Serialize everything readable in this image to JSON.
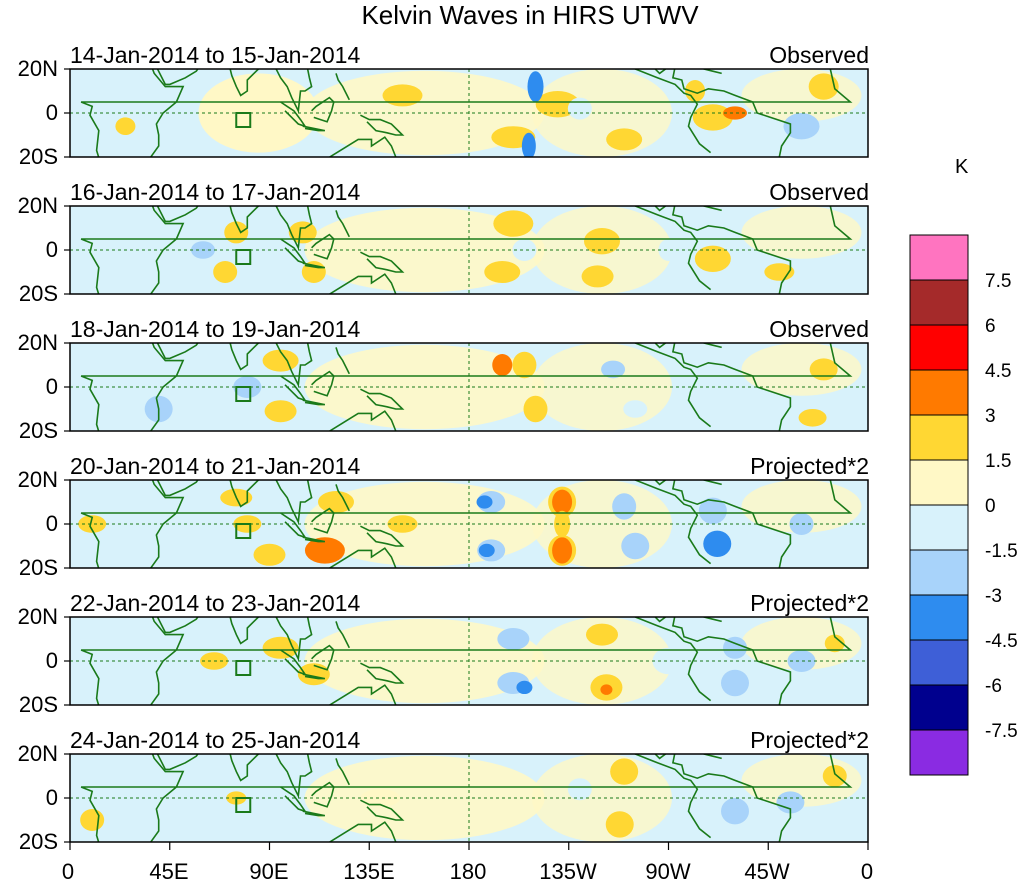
{
  "title": "Kelvin Waves in HIRS UTWV",
  "panels": [
    {
      "date_range": "14-Jan-2014 to 15-Jan-2014",
      "type": "Observed"
    },
    {
      "date_range": "16-Jan-2014 to 17-Jan-2014",
      "type": "Observed"
    },
    {
      "date_range": "18-Jan-2014 to 19-Jan-2014",
      "type": "Observed"
    },
    {
      "date_range": "20-Jan-2014 to 21-Jan-2014",
      "type": "Projected*2"
    },
    {
      "date_range": "22-Jan-2014 to 23-Jan-2014",
      "type": "Projected*2"
    },
    {
      "date_range": "24-Jan-2014 to 25-Jan-2014",
      "type": "Projected*2"
    }
  ],
  "lat_labels": [
    "20N",
    "0",
    "20S"
  ],
  "lon_labels": [
    "0",
    "45E",
    "90E",
    "135E",
    "180",
    "135W",
    "90W",
    "45W",
    "0"
  ],
  "colorbar": {
    "unit": "K",
    "labels": [
      "7.5",
      "6",
      "4.5",
      "3",
      "1.5",
      "0",
      "-1.5",
      "-3",
      "-4.5",
      "-6",
      "-7.5"
    ],
    "colors": [
      "#ff74c0",
      "#a52a2a",
      "#ff0000",
      "#ff7a00",
      "#ffd733",
      "#fff8c6",
      "#d8f2fb",
      "#a8d3fa",
      "#2e8cef",
      "#3e5fd7",
      "#00008e",
      "#8a2be2"
    ]
  }
}
